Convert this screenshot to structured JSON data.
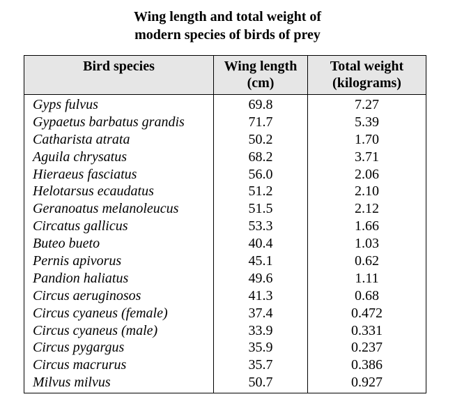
{
  "title": {
    "line1": "Wing length and total weight of",
    "line2": "modern species of birds of prey"
  },
  "headers": {
    "species_line1": "Bird species",
    "wing_line1": "Wing length",
    "wing_line2": "(cm)",
    "weight_line1": "Total weight",
    "weight_line2": "(kilograms)"
  },
  "rows": [
    {
      "species": "Gyps fulvus",
      "wing": "69.8",
      "weight": "7.27"
    },
    {
      "species": "Gypaetus barbatus grandis",
      "wing": "71.7",
      "weight": "5.39"
    },
    {
      "species": "Catharista atrata",
      "wing": "50.2",
      "weight": "1.70"
    },
    {
      "species": "Aguila chrysatus",
      "wing": "68.2",
      "weight": "3.71"
    },
    {
      "species": "Hieraeus fasciatus",
      "wing": "56.0",
      "weight": "2.06"
    },
    {
      "species": "Helotarsus ecaudatus",
      "wing": "51.2",
      "weight": "2.10"
    },
    {
      "species": "Geranoatus melanoleucus",
      "wing": "51.5",
      "weight": "2.12"
    },
    {
      "species": "Circatus gallicus",
      "wing": "53.3",
      "weight": "1.66"
    },
    {
      "species": "Buteo bueto",
      "wing": "40.4",
      "weight": "1.03"
    },
    {
      "species": "Pernis apivorus",
      "wing": "45.1",
      "weight": "0.62"
    },
    {
      "species": "Pandion haliatus",
      "wing": "49.6",
      "weight": "1.11"
    },
    {
      "species": "Circus aeruginosos",
      "wing": "41.3",
      "weight": "0.68"
    },
    {
      "species": "Circus cyaneus (female)",
      "wing": "37.4",
      "weight": "0.472"
    },
    {
      "species": "Circus cyaneus (male)",
      "wing": "33.9",
      "weight": "0.331"
    },
    {
      "species": "Circus pygargus",
      "wing": "35.9",
      "weight": "0.237"
    },
    {
      "species": "Circus macrurus",
      "wing": "35.7",
      "weight": "0.386"
    },
    {
      "species": "Milvus milvus",
      "wing": "50.7",
      "weight": "0.927"
    }
  ],
  "colors": {
    "header_background": "#e6e6e6",
    "border": "#000000"
  }
}
